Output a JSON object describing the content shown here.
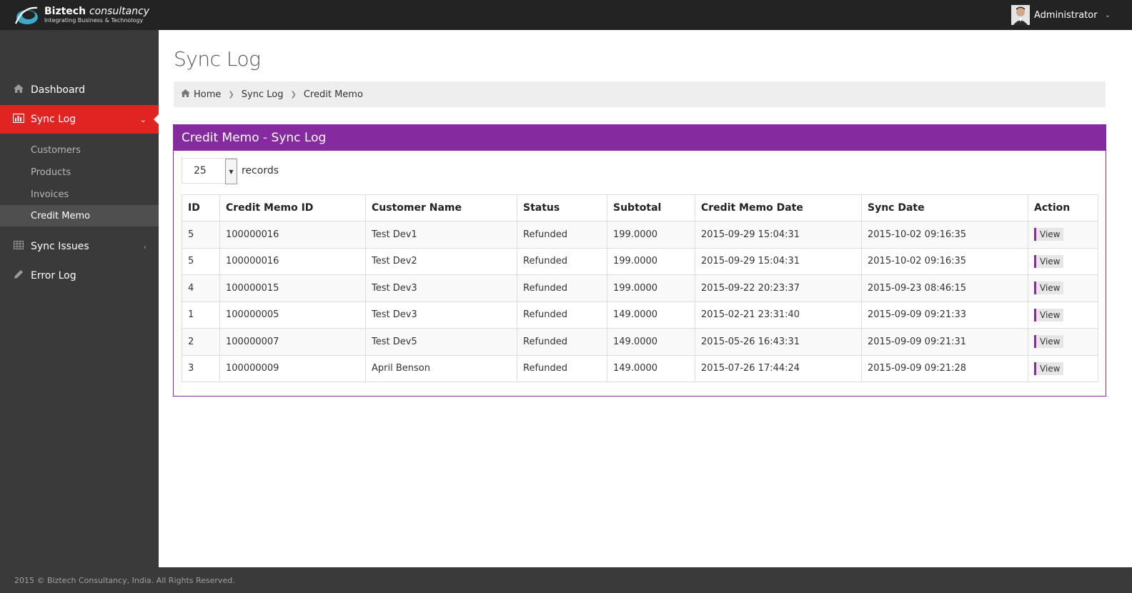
{
  "brand": {
    "name_bold": "Biztech",
    "name_italic": "consultancy",
    "tagline": "Integrating Business & Technology"
  },
  "user": {
    "name": "Administrator",
    "dropdown_icon": "chevron-down-icon"
  },
  "sidebar": {
    "items": [
      {
        "label": "Dashboard",
        "icon": "home-icon"
      },
      {
        "label": "Sync Log",
        "icon": "bar-chart-icon",
        "active": true
      },
      {
        "label": "Sync Issues",
        "icon": "table-icon"
      },
      {
        "label": "Error Log",
        "icon": "pencil-icon"
      }
    ],
    "sub_items": [
      {
        "label": "Customers"
      },
      {
        "label": "Products"
      },
      {
        "label": "Invoices"
      },
      {
        "label": "Credit Memo",
        "active": true
      }
    ]
  },
  "page": {
    "title": "Sync Log"
  },
  "breadcrumb": {
    "items": [
      "Home",
      "Sync Log",
      "Credit Memo"
    ]
  },
  "panel": {
    "title": "Credit Memo - Sync Log",
    "page_size": "25",
    "records_label": "records"
  },
  "table": {
    "headers": [
      "ID",
      "Credit Memo ID",
      "Customer Name",
      "Status",
      "Subtotal",
      "Credit Memo Date",
      "Sync Date",
      "Action"
    ],
    "rows": [
      {
        "id": "5",
        "memo_id": "100000016",
        "customer": "Test Dev1",
        "status": "Refunded",
        "subtotal": "199.0000",
        "memo_date": "2015-09-29 15:04:31",
        "sync_date": "2015-10-02 09:16:35",
        "action": "View"
      },
      {
        "id": "5",
        "memo_id": "100000016",
        "customer": "Test Dev2",
        "status": "Refunded",
        "subtotal": "199.0000",
        "memo_date": "2015-09-29 15:04:31",
        "sync_date": "2015-10-02 09:16:35",
        "action": "View"
      },
      {
        "id": "4",
        "memo_id": "100000015",
        "customer": "Test Dev3",
        "status": "Refunded",
        "subtotal": "199.0000",
        "memo_date": "2015-09-22 20:23:37",
        "sync_date": "2015-09-23 08:46:15",
        "action": "View"
      },
      {
        "id": "1",
        "memo_id": "100000005",
        "customer": "Test Dev3",
        "status": "Refunded",
        "subtotal": "149.0000",
        "memo_date": "2015-02-21 23:31:40",
        "sync_date": "2015-09-09 09:21:33",
        "action": "View"
      },
      {
        "id": "2",
        "memo_id": "100000007",
        "customer": "Test Dev5",
        "status": "Refunded",
        "subtotal": "149.0000",
        "memo_date": "2015-05-26 16:43:31",
        "sync_date": "2015-09-09 09:21:31",
        "action": "View"
      },
      {
        "id": "3",
        "memo_id": "100000009",
        "customer": "April Benson",
        "status": "Refunded",
        "subtotal": "149.0000",
        "memo_date": "2015-07-26 17:44:24",
        "sync_date": "2015-09-09 09:21:28",
        "action": "View"
      }
    ]
  },
  "footer": {
    "text": "2015 © Biztech Consultancy, India. All Rights Reserved."
  },
  "colors": {
    "sidebar_active": "#e02422",
    "panel_header": "#862aa0",
    "topbar": "#232323",
    "sidebar": "#3a3a3a"
  }
}
